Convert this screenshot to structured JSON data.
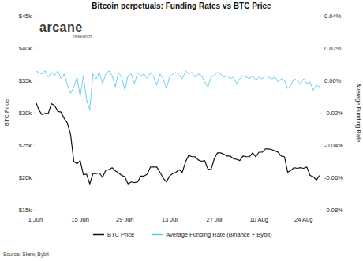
{
  "chart_data": {
    "type": "line",
    "title": "Bitcoin perpetuals: Funding Rates vs BTC Price",
    "brand": "arcane",
    "brand_subtitle": "research",
    "source": "Source: Skew, Bybit",
    "y_label": "BTC Price",
    "y2_label": "Average Funding Rate",
    "legend": "bottom",
    "grid": false,
    "categories": [
      "1 Jun",
      null,
      null,
      null,
      null,
      null,
      null,
      null,
      null,
      null,
      null,
      null,
      null,
      null,
      "15 Jun",
      null,
      null,
      null,
      null,
      null,
      null,
      null,
      null,
      null,
      null,
      null,
      null,
      null,
      "29 Jun",
      null,
      null,
      null,
      null,
      null,
      null,
      null,
      null,
      null,
      null,
      null,
      null,
      null,
      "13 Jul",
      null,
      null,
      null,
      null,
      null,
      null,
      null,
      null,
      null,
      null,
      null,
      null,
      null,
      "27 Jul",
      null,
      null,
      null,
      null,
      null,
      null,
      null,
      null,
      null,
      null,
      null,
      null,
      null,
      "10 Aug",
      null,
      null,
      null,
      null,
      null,
      null,
      null,
      null,
      null,
      null,
      null,
      null,
      null,
      "24 Aug",
      null,
      null,
      null,
      null,
      null
    ],
    "ylim": [
      15000,
      45000
    ],
    "yticks": [
      {
        "value": 15000,
        "label": "$15k"
      },
      {
        "value": 20000,
        "label": "$20k"
      },
      {
        "value": 25000,
        "label": "$25k"
      },
      {
        "value": 30000,
        "label": "$30k"
      },
      {
        "value": 35000,
        "label": "$35k"
      },
      {
        "value": 40000,
        "label": "$40k"
      },
      {
        "value": 45000,
        "label": "$45k"
      }
    ],
    "y2lim": [
      -0.08,
      0.04
    ],
    "y2ticks": [
      {
        "value": 0.04,
        "label": "0.04%"
      },
      {
        "value": 0.02,
        "label": "0.02%"
      },
      {
        "value": 0,
        "label": "0.00%"
      },
      {
        "value": -0.02,
        "label": "-0.02%"
      },
      {
        "value": -0.04,
        "label": "-0.04%"
      },
      {
        "value": -0.06,
        "label": "-0.06%"
      },
      {
        "value": -0.08,
        "label": "-0.08%"
      }
    ],
    "series": [
      {
        "name": "BTC Price",
        "color": "#111111",
        "values": [
          31800,
          30500,
          29700,
          29900,
          29900,
          31400,
          31100,
          30200,
          30100,
          29100,
          28400,
          26600,
          22500,
          22100,
          22600,
          20400,
          20500,
          19000,
          20600,
          20600,
          20700,
          20000,
          21100,
          21200,
          21500,
          21000,
          20700,
          20300,
          20100,
          19000,
          19300,
          19200,
          19300,
          20200,
          20200,
          20500,
          21600,
          21600,
          21600,
          20800,
          19900,
          19300,
          20200,
          20600,
          20800,
          21200,
          20800,
          22400,
          23400,
          23200,
          23200,
          22700,
          22500,
          22600,
          21300,
          21200,
          22900,
          23800,
          23800,
          23600,
          23300,
          23300,
          22900,
          22800,
          22600,
          23300,
          23200,
          23200,
          23800,
          23200,
          23900,
          23900,
          24400,
          24400,
          24300,
          24100,
          23900,
          23300,
          23200,
          20800,
          21100,
          21500,
          21400,
          21500,
          21400,
          21600,
          20300,
          20100,
          19600,
          20300
        ]
      },
      {
        "name": "Average Funding Rate (Binance + Bybit)",
        "color": "#5bc8f5",
        "axis": "y2",
        "values": [
          0.006,
          0.005,
          0.004,
          0.006,
          0.002,
          0.005,
          0.003,
          0.006,
          0.001,
          0.004,
          -0.003,
          -0.008,
          -0.004,
          0.002,
          -0.01,
          0.003,
          -0.012,
          -0.018,
          0.004,
          0.001,
          0.005,
          -0.002,
          0.004,
          0.006,
          0.003,
          -0.004,
          0.005,
          0.002,
          -0.006,
          0.003,
          0.004,
          -0.002,
          0.005,
          0.003,
          0.004,
          0.001,
          0.005,
          0.002,
          -0.003,
          0.004,
          0.001,
          -0.005,
          0.002,
          0.004,
          0.005,
          0.003,
          0.001,
          0.006,
          0.004,
          0.005,
          0.002,
          0.004,
          0.003,
          -0.001,
          -0.004,
          0.002,
          0.003,
          0.005,
          0.004,
          0.002,
          0.003,
          0.001,
          0.002,
          -0.002,
          0.001,
          0.003,
          0.002,
          0.001,
          0.003,
          0.0,
          0.002,
          0.001,
          0.003,
          0.002,
          0.001,
          0.002,
          -0.001,
          0.001,
          0.0,
          -0.005,
          -0.003,
          0.001,
          0.0,
          -0.002,
          0.001,
          -0.002,
          -0.001,
          -0.006,
          -0.003,
          -0.004
        ]
      }
    ]
  }
}
